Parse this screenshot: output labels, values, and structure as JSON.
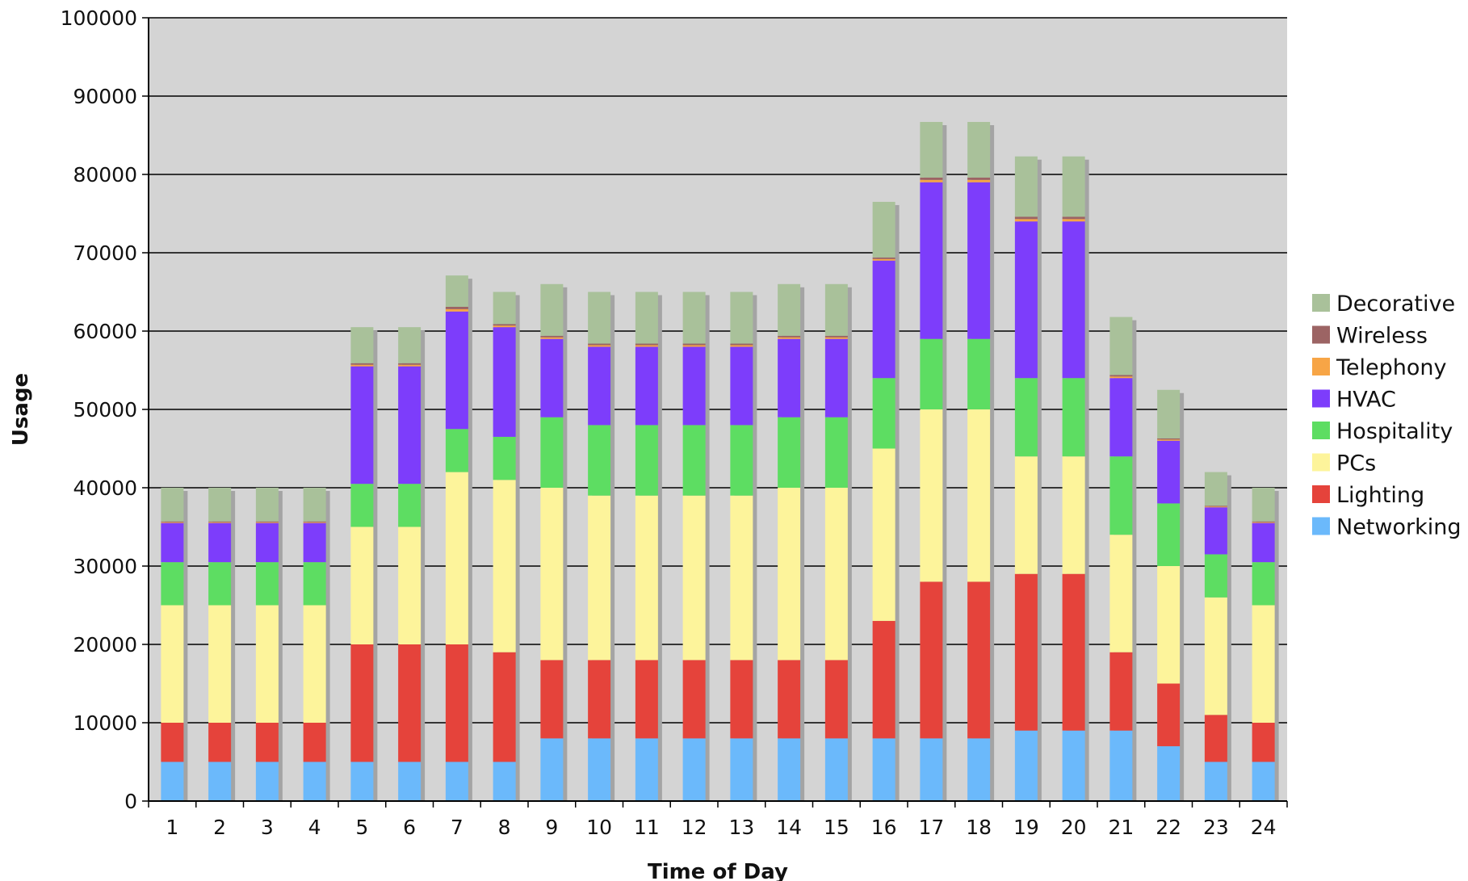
{
  "chart_data": {
    "type": "bar",
    "stacked": true,
    "title": "",
    "xlabel": "Time of Day",
    "ylabel": "Usage",
    "ylim": [
      0,
      100000
    ],
    "ytick_step": 10000,
    "grid": true,
    "legend_position": "right",
    "plot_background": "#d4d4d4",
    "categories": [
      "1",
      "2",
      "3",
      "4",
      "5",
      "6",
      "7",
      "8",
      "9",
      "10",
      "11",
      "12",
      "13",
      "14",
      "15",
      "16",
      "17",
      "18",
      "19",
      "20",
      "21",
      "22",
      "23",
      "24"
    ],
    "series": [
      {
        "name": "Networking",
        "color": "#6bb9fb",
        "values": [
          5000,
          5000,
          5000,
          5000,
          5000,
          5000,
          5000,
          5000,
          8000,
          8000,
          8000,
          8000,
          8000,
          8000,
          8000,
          8000,
          8000,
          8000,
          9000,
          9000,
          9000,
          7000,
          5000,
          5000
        ]
      },
      {
        "name": "Lighting",
        "color": "#e5433b",
        "values": [
          5000,
          5000,
          5000,
          5000,
          15000,
          15000,
          15000,
          14000,
          10000,
          10000,
          10000,
          10000,
          10000,
          10000,
          10000,
          15000,
          20000,
          20000,
          20000,
          20000,
          10000,
          8000,
          6000,
          5000
        ]
      },
      {
        "name": "PCs",
        "color": "#fdf49b",
        "values": [
          15000,
          15000,
          15000,
          15000,
          15000,
          15000,
          22000,
          22000,
          22000,
          21000,
          21000,
          21000,
          21000,
          22000,
          22000,
          22000,
          22000,
          22000,
          15000,
          15000,
          15000,
          15000,
          15000,
          15000
        ]
      },
      {
        "name": "Hospitality",
        "color": "#5ddd62",
        "values": [
          5500,
          5500,
          5500,
          5500,
          5500,
          5500,
          5500,
          5500,
          9000,
          9000,
          9000,
          9000,
          9000,
          9000,
          9000,
          9000,
          9000,
          9000,
          10000,
          10000,
          10000,
          8000,
          5500,
          5500
        ]
      },
      {
        "name": "HVAC",
        "color": "#7d3dfb",
        "values": [
          5000,
          5000,
          5000,
          5000,
          15000,
          15000,
          15000,
          14000,
          10000,
          10000,
          10000,
          10000,
          10000,
          10000,
          10000,
          15000,
          20000,
          20000,
          20000,
          20000,
          10000,
          8000,
          6000,
          5000
        ]
      },
      {
        "name": "Telephony",
        "color": "#f7a546",
        "values": [
          100,
          100,
          100,
          100,
          200,
          200,
          300,
          200,
          200,
          200,
          200,
          200,
          200,
          200,
          200,
          200,
          300,
          300,
          300,
          300,
          200,
          150,
          100,
          100
        ]
      },
      {
        "name": "Wireless",
        "color": "#9c6464",
        "values": [
          100,
          100,
          100,
          100,
          200,
          200,
          300,
          200,
          200,
          200,
          200,
          200,
          200,
          200,
          200,
          200,
          300,
          300,
          300,
          300,
          200,
          150,
          100,
          100
        ]
      },
      {
        "name": "Decorative",
        "color": "#a9c19a",
        "values": [
          4300,
          4300,
          4300,
          4300,
          4600,
          4600,
          4000,
          4100,
          6600,
          6600,
          6600,
          6600,
          6600,
          6600,
          6600,
          7100,
          7100,
          7100,
          7700,
          7700,
          7400,
          6200,
          4300,
          4300
        ]
      }
    ]
  }
}
